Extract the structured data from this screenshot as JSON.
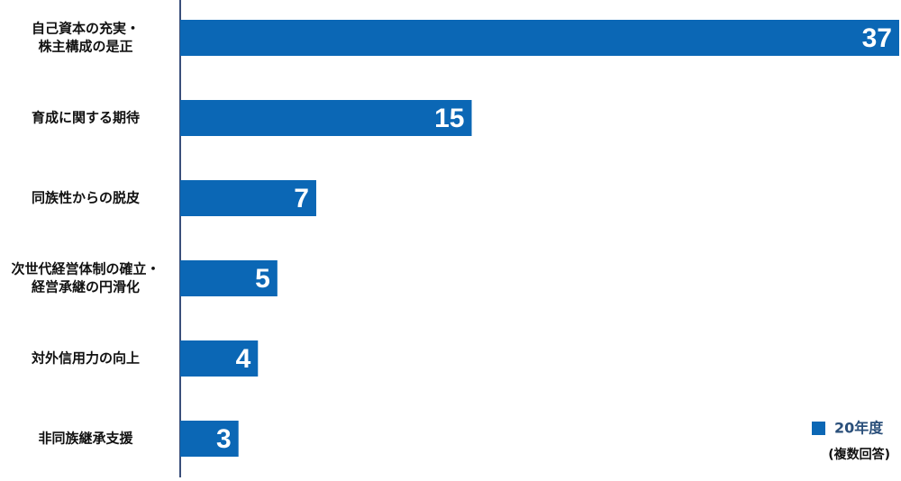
{
  "chart_data": {
    "type": "barh",
    "categories": [
      [
        "自己資本の充実・",
        "株主構成の是正"
      ],
      [
        "育成に関する期待"
      ],
      [
        "同族性からの脱皮"
      ],
      [
        "次世代経営体制の確立・",
        "経営承継の円滑化"
      ],
      [
        "対外信用力の向上"
      ],
      [
        "非同族継承支援"
      ]
    ],
    "series": [
      {
        "name": "20年度",
        "color": "#0b67b5",
        "values": [
          37,
          15,
          7,
          5,
          4,
          3
        ]
      }
    ],
    "note": "(複数回答)"
  }
}
